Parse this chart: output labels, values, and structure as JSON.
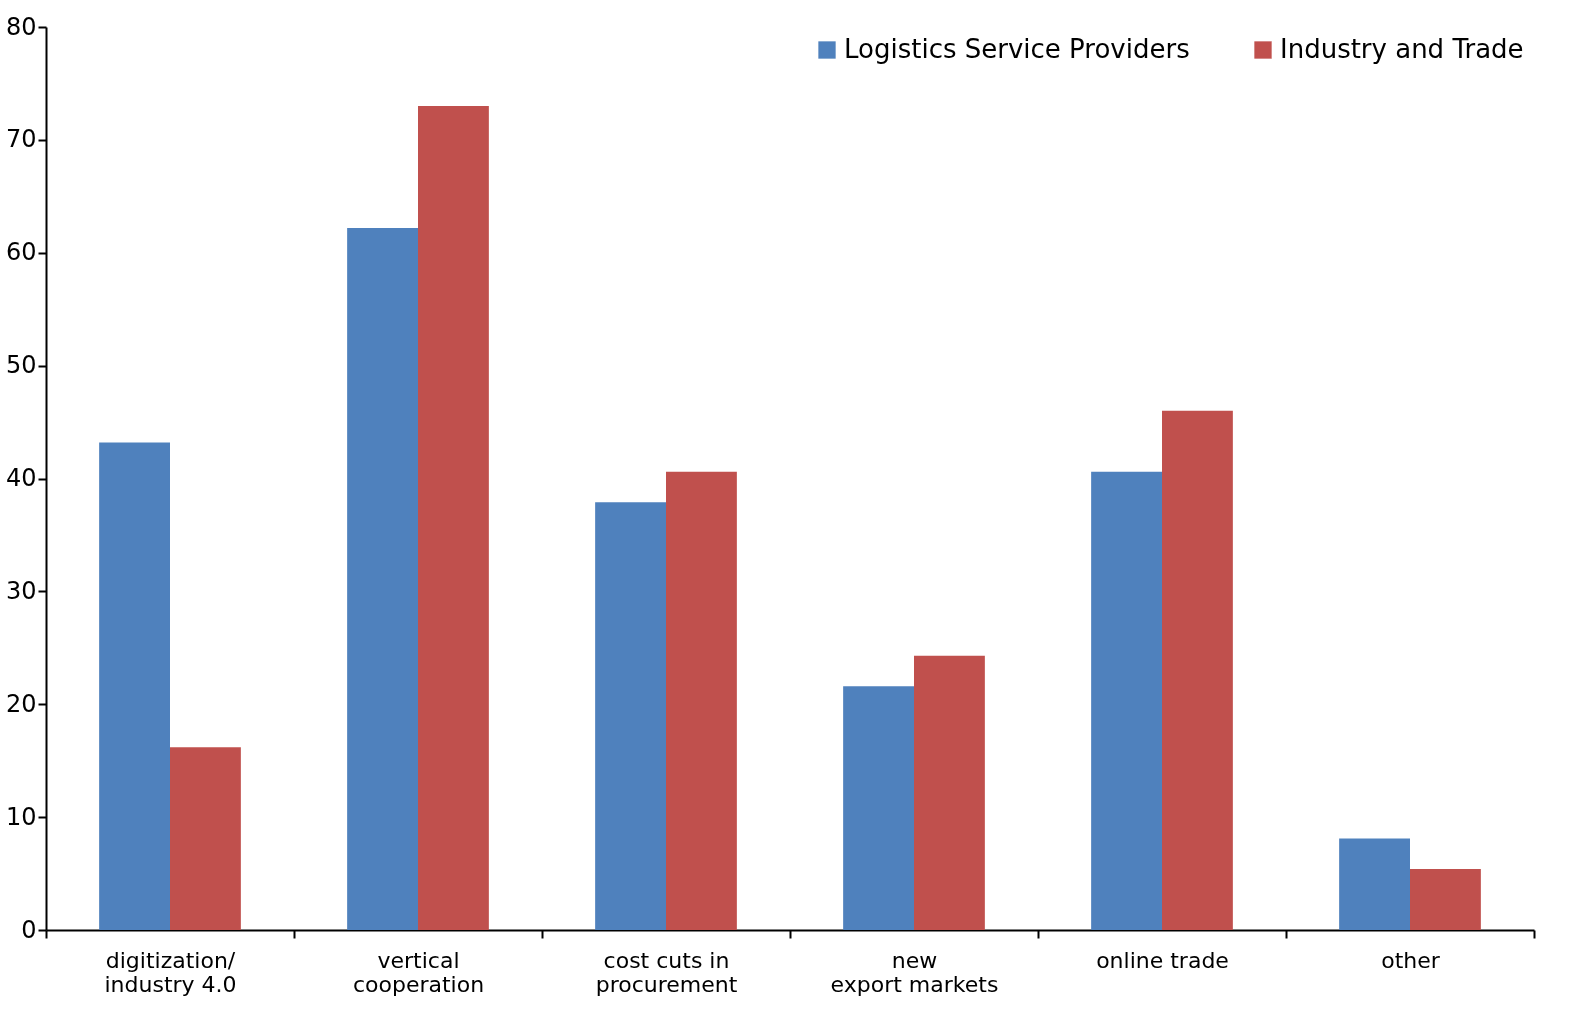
{
  "chart_data": {
    "type": "bar",
    "categories": [
      "digitization/\nindustry 4.0",
      "vertical\ncooperation",
      "cost cuts in\nprocurement",
      "new\nexport markets",
      "online trade",
      "other"
    ],
    "series": [
      {
        "name": "Logistics Service Providers",
        "color": "#4f81bd",
        "values": [
          43.2,
          62.2,
          37.9,
          21.6,
          40.6,
          8.1
        ]
      },
      {
        "name": "Industry and Trade",
        "color": "#c0504d",
        "values": [
          16.2,
          73,
          40.6,
          24.3,
          46.0,
          5.4
        ]
      }
    ],
    "ylim": [
      0,
      80
    ],
    "yticks": [
      0,
      10,
      20,
      30,
      40,
      50,
      60,
      70,
      80
    ],
    "grid": false,
    "legend": "top right"
  }
}
